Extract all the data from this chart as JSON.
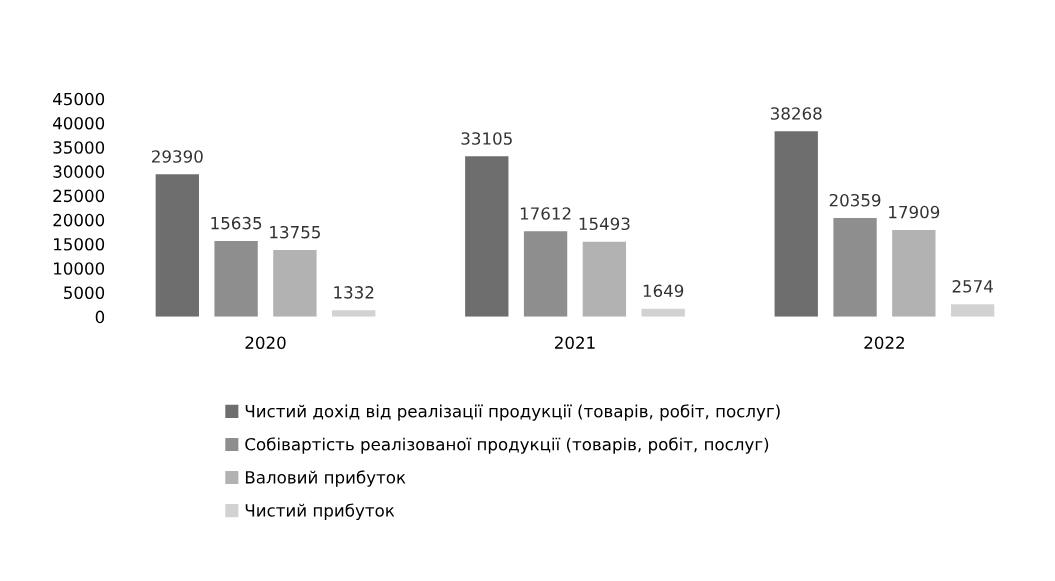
{
  "chart_data": {
    "type": "bar",
    "categories": [
      "2020",
      "2021",
      "2022"
    ],
    "series": [
      {
        "name": "Чистий дохід від реалізації продукції (товарів, робіт, послуг)",
        "color": "#6e6e6e",
        "values": [
          29390,
          33105,
          38268
        ]
      },
      {
        "name": "Собівартість реалізованої продукції (товарів, робіт, послуг)",
        "color": "#8e8e8e",
        "values": [
          15635,
          17612,
          20359
        ]
      },
      {
        "name": "Валовий прибуток",
        "color": "#b2b2b2",
        "values": [
          13755,
          15493,
          17909
        ]
      },
      {
        "name": "Чистий прибуток",
        "color": "#d2d2d2",
        "values": [
          1332,
          1649,
          2574
        ]
      }
    ],
    "ylim": [
      0,
      45000
    ],
    "yticks": [
      0,
      5000,
      10000,
      15000,
      20000,
      25000,
      30000,
      35000,
      40000,
      45000
    ],
    "data_labels": true,
    "legend": "bottom",
    "grid": false
  }
}
